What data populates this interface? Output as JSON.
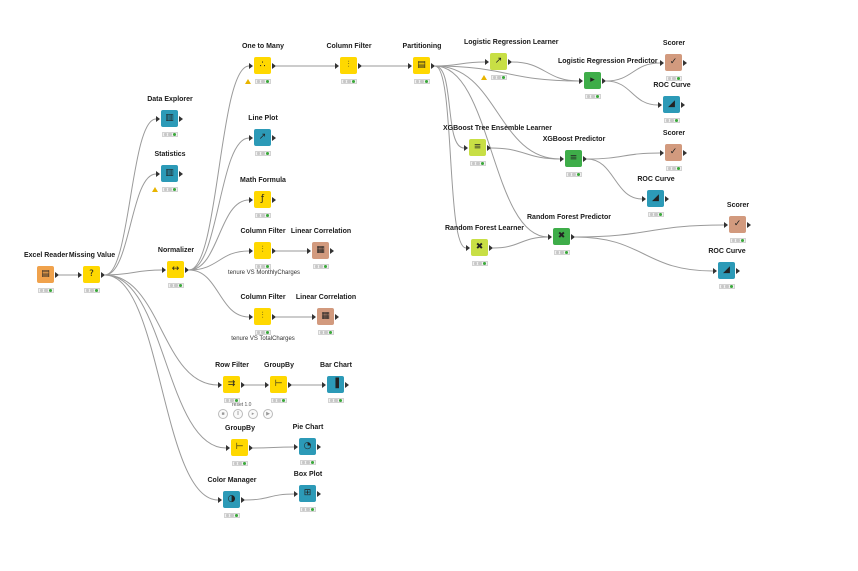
{
  "workflow": {
    "nodes": [
      {
        "id": "excel-reader",
        "label": "Excel Reader",
        "kind": "src",
        "icon": "excel-reader-icon",
        "glyph": "▤",
        "status": "ok"
      },
      {
        "id": "missing-value",
        "label": "Missing Value",
        "kind": "man",
        "icon": "missing-value-icon",
        "glyph": "?",
        "status": "ok"
      },
      {
        "id": "data-explorer",
        "label": "Data Explorer",
        "kind": "vis",
        "icon": "data-explorer-icon",
        "glyph": "▥",
        "status": "ok"
      },
      {
        "id": "statistics",
        "label": "Statistics",
        "kind": "vis",
        "icon": "statistics-icon",
        "glyph": "▥",
        "status": "warn"
      },
      {
        "id": "normalizer",
        "label": "Normalizer",
        "kind": "man",
        "icon": "normalizer-icon",
        "glyph": "↔",
        "status": "ok"
      },
      {
        "id": "one-to-many",
        "label": "One to Many",
        "kind": "man",
        "icon": "one-to-many-icon",
        "glyph": "∴",
        "status": "warn"
      },
      {
        "id": "line-plot",
        "label": "Line Plot",
        "kind": "vis",
        "icon": "line-plot-icon",
        "glyph": "↗",
        "status": "ok"
      },
      {
        "id": "math-formula",
        "label": "Math Formula",
        "kind": "man",
        "icon": "math-formula-icon",
        "glyph": "ƒ",
        "status": "ok"
      },
      {
        "id": "column-filter-1",
        "label": "Column Filter",
        "kind": "man",
        "icon": "column-filter-icon",
        "glyph": "⫶",
        "status": "ok"
      },
      {
        "id": "column-filter-2",
        "label": "Column Filter",
        "kind": "man",
        "icon": "column-filter-icon",
        "glyph": "⫶",
        "status": "ok",
        "annot": "tenure VS MonthlyCharges"
      },
      {
        "id": "linear-correlation-1",
        "label": "Linear Correlation",
        "kind": "other",
        "icon": "linear-correlation-icon",
        "glyph": "▦",
        "status": "ok"
      },
      {
        "id": "column-filter-3",
        "label": "Column Filter",
        "kind": "man",
        "icon": "column-filter-icon",
        "glyph": "⫶",
        "status": "ok",
        "annot": "tenure VS TotalCharges"
      },
      {
        "id": "linear-correlation-2",
        "label": "Linear Correlation",
        "kind": "other",
        "icon": "linear-correlation-icon",
        "glyph": "▦",
        "status": "ok"
      },
      {
        "id": "partitioning",
        "label": "Partitioning",
        "kind": "man",
        "icon": "partitioning-icon",
        "glyph": "▤",
        "status": "ok"
      },
      {
        "id": "logreg-learner",
        "label": "Logistic Regression Learner",
        "kind": "pred",
        "icon": "learner-icon",
        "glyph": "↗",
        "status": "warn"
      },
      {
        "id": "logreg-predictor",
        "label": "Logistic Regression Predictor",
        "kind": "predg",
        "icon": "predictor-icon",
        "glyph": "▸",
        "status": "ok"
      },
      {
        "id": "scorer-1",
        "label": "Scorer",
        "kind": "other",
        "icon": "scorer-icon",
        "glyph": "✓",
        "status": "ok"
      },
      {
        "id": "roc-curve-1",
        "label": "ROC Curve",
        "kind": "vis",
        "icon": "roc-curve-icon",
        "glyph": "◢",
        "status": "ok"
      },
      {
        "id": "xgb-learner",
        "label": "XGBoost Tree Ensemble Learner",
        "kind": "pred",
        "icon": "learner-icon",
        "glyph": "≡",
        "status": "ok"
      },
      {
        "id": "xgb-predictor",
        "label": "XGBoost Predictor",
        "kind": "predg",
        "icon": "predictor-icon",
        "glyph": "≡",
        "status": "ok"
      },
      {
        "id": "scorer-2",
        "label": "Scorer",
        "kind": "other",
        "icon": "scorer-icon",
        "glyph": "✓",
        "status": "ok"
      },
      {
        "id": "roc-curve-2",
        "label": "ROC Curve",
        "kind": "vis",
        "icon": "roc-curve-icon",
        "glyph": "◢",
        "status": "ok"
      },
      {
        "id": "rf-learner",
        "label": "Random Forest Learner",
        "kind": "pred",
        "icon": "learner-icon",
        "glyph": "✖",
        "status": "ok"
      },
      {
        "id": "rf-predictor",
        "label": "Random Forest Predictor",
        "kind": "predg",
        "icon": "predictor-icon",
        "glyph": "✖",
        "status": "ok"
      },
      {
        "id": "scorer-3",
        "label": "Scorer",
        "kind": "other",
        "icon": "scorer-icon",
        "glyph": "✓",
        "status": "ok"
      },
      {
        "id": "roc-curve-3",
        "label": "ROC Curve",
        "kind": "vis",
        "icon": "roc-curve-icon",
        "glyph": "◢",
        "status": "ok"
      },
      {
        "id": "row-filter",
        "label": "Row Filter",
        "kind": "man",
        "icon": "row-filter-icon",
        "glyph": "⇉",
        "status": "ok"
      },
      {
        "id": "groupby-1",
        "label": "GroupBy",
        "kind": "man",
        "icon": "groupby-icon",
        "glyph": "⊢",
        "status": "ok"
      },
      {
        "id": "bar-chart",
        "label": "Bar Chart",
        "kind": "vis",
        "icon": "bar-chart-icon",
        "glyph": "▐",
        "status": "ok"
      },
      {
        "id": "groupby-2",
        "label": "GroupBy",
        "kind": "man",
        "icon": "groupby-icon",
        "glyph": "⊢",
        "status": "ok"
      },
      {
        "id": "pie-chart",
        "label": "Pie Chart",
        "kind": "vis",
        "icon": "pie-chart-icon",
        "glyph": "◔",
        "status": "ok"
      },
      {
        "id": "color-manager",
        "label": "Color Manager",
        "kind": "vis",
        "icon": "color-manager-icon",
        "glyph": "◑",
        "status": "ok"
      },
      {
        "id": "box-plot",
        "label": "Box Plot",
        "kind": "vis",
        "icon": "box-plot-icon",
        "glyph": "⊞",
        "status": "ok"
      }
    ],
    "loop_label": "reset 1.0"
  }
}
